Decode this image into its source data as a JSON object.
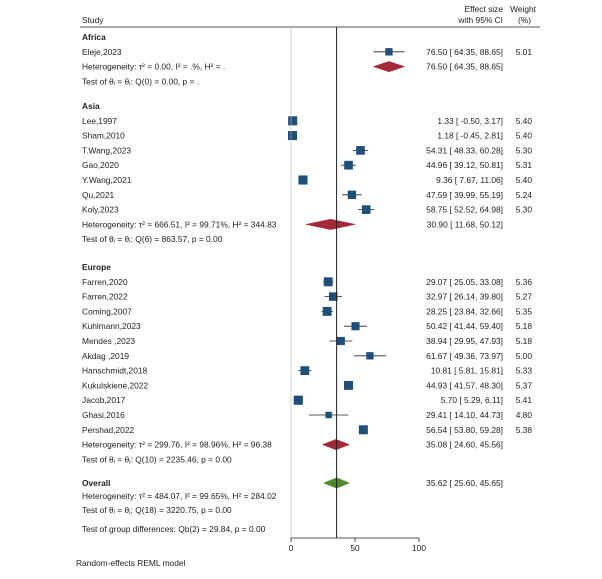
{
  "chart_data": {
    "type": "forest",
    "header": {
      "study": "Study",
      "effect_line1": "Effect size",
      "effect_line2": "with 95% CI",
      "weight_line1": "Weight",
      "weight_line2": "(%)"
    },
    "axis": {
      "xlim": [
        0,
        100
      ],
      "ticks": [
        0,
        50,
        100
      ],
      "tick_labels": [
        "0",
        "50",
        "100"
      ],
      "reference_line": 35.62
    },
    "groups": [
      {
        "name": "Africa",
        "studies": [
          {
            "study": "Eleje,2023",
            "effect": 76.5,
            "lo": 64.35,
            "hi": 88.65,
            "ci_text": "76.50 [ 64.35,  88.65]",
            "weight": "5.01"
          }
        ],
        "pooled": {
          "effect": 76.5,
          "lo": 64.35,
          "hi": 88.65,
          "ci_text": "76.50 [ 64.35,  88.65]"
        },
        "heterogeneity": "Heterogeneity: τ² = 0.00, I² = .%, H² = .",
        "test": "Test of θᵢ = θⱼ: Q(0) = 0.00, p = ."
      },
      {
        "name": "Asia",
        "studies": [
          {
            "study": "Lee,1997",
            "effect": 1.33,
            "lo": -0.5,
            "hi": 3.17,
            "ci_text": "1.33 [ -0.50,   3.17]",
            "weight": "5.40"
          },
          {
            "study": "Sham,2010",
            "effect": 1.18,
            "lo": -0.45,
            "hi": 2.81,
            "ci_text": "1.18 [ -0.45,   2.81]",
            "weight": "5.40"
          },
          {
            "study": "T.Wang,2023",
            "effect": 54.31,
            "lo": 48.33,
            "hi": 60.28,
            "ci_text": "54.31 [ 48.33,  60.28]",
            "weight": "5.30"
          },
          {
            "study": "Gao,2020",
            "effect": 44.96,
            "lo": 39.12,
            "hi": 50.81,
            "ci_text": "44.96 [ 39.12,  50.81]",
            "weight": "5.31"
          },
          {
            "study": "Y.Wang,2021",
            "effect": 9.36,
            "lo": 7.67,
            "hi": 11.06,
            "ci_text": "9.36 [  7.67,  11.06]",
            "weight": "5.40"
          },
          {
            "study": "Qu,2021",
            "effect": 47.59,
            "lo": 39.99,
            "hi": 55.19,
            "ci_text": "47.59 [ 39.99,  55.19]",
            "weight": "5.24"
          },
          {
            "study": "Koly,2023",
            "effect": 58.75,
            "lo": 52.52,
            "hi": 64.98,
            "ci_text": "58.75 [ 52.52,  64.98]",
            "weight": "5.30"
          }
        ],
        "pooled": {
          "effect": 30.9,
          "lo": 11.68,
          "hi": 50.12,
          "ci_text": "30.90 [ 11.68,  50.12]"
        },
        "heterogeneity": "Heterogeneity: τ² = 666.51, I² = 99.71%, H² = 344.83",
        "test": "Test of θᵢ = θⱼ: Q(6) = 863.57, p = 0.00"
      },
      {
        "name": "Europe",
        "studies": [
          {
            "study": "Farren,2020",
            "effect": 29.07,
            "lo": 25.05,
            "hi": 33.08,
            "ci_text": "29.07 [ 25.05,  33.08]",
            "weight": "5.36"
          },
          {
            "study": "Farren,2022",
            "effect": 32.97,
            "lo": 26.14,
            "hi": 39.8,
            "ci_text": "32.97 [ 26.14,  39.80]",
            "weight": "5.27"
          },
          {
            "study": "Coming,2007",
            "effect": 28.25,
            "lo": 23.84,
            "hi": 32.66,
            "ci_text": "28.25 [ 23.84,  32.66]",
            "weight": "5.35"
          },
          {
            "study": "Kuhlmann,2023",
            "effect": 50.42,
            "lo": 41.44,
            "hi": 59.4,
            "ci_text": "50.42 [ 41.44,  59.40]",
            "weight": "5.18"
          },
          {
            "study": "Mendes ,2023",
            "effect": 38.94,
            "lo": 29.95,
            "hi": 47.93,
            "ci_text": "38.94 [ 29.95,  47.93]",
            "weight": "5.18"
          },
          {
            "study": "Akdag ,2019",
            "effect": 61.67,
            "lo": 49.36,
            "hi": 73.97,
            "ci_text": "61.67 [ 49.36,  73.97]",
            "weight": "5.00"
          },
          {
            "study": "Hanschmidt,2018",
            "effect": 10.81,
            "lo": 5.81,
            "hi": 15.81,
            "ci_text": "10.81 [  5.81,  15.81]",
            "weight": "5.33"
          },
          {
            "study": "Kukulskienė,2022",
            "effect": 44.93,
            "lo": 41.57,
            "hi": 48.3,
            "ci_text": "44.93 [ 41.57,  48.30]",
            "weight": "5.37"
          },
          {
            "study": "Jacob,2017",
            "effect": 5.7,
            "lo": 5.29,
            "hi": 6.11,
            "ci_text": "5.70 [  5.29,   6.11]",
            "weight": "5.41"
          },
          {
            "study": "Ghasi,2016",
            "effect": 29.41,
            "lo": 14.1,
            "hi": 44.73,
            "ci_text": "29.41 [ 14.10,  44.73]",
            "weight": "4.80"
          },
          {
            "study": "Pershad,2022",
            "effect": 56.54,
            "lo": 53.8,
            "hi": 59.28,
            "ci_text": "56.54 [ 53.80,  59.28]",
            "weight": "5.38"
          }
        ],
        "pooled": {
          "effect": 35.08,
          "lo": 24.6,
          "hi": 45.56,
          "ci_text": "35.08 [ 24.60,  45.56]"
        },
        "heterogeneity": "Heterogeneity: τ² = 299.76, I² = 98.96%, H² = 96.38",
        "test": "Test of θᵢ = θⱼ: Q(10) = 2235.46, p = 0.00"
      }
    ],
    "overall": {
      "label": "Overall",
      "effect": 35.62,
      "lo": 25.6,
      "hi": 45.65,
      "ci_text": "35.62 [ 25.60,  45.65]",
      "heterogeneity": "Heterogeneity: τ² = 484.07, I² = 99.65%, H² = 284.02",
      "test": "Test of θᵢ = θⱼ: Q(18) = 3220.75, p = 0.00"
    },
    "group_difference": "Test of group differences: Qb(2) = 29.84, p = 0.00",
    "footnote": "Random-effects REML model",
    "colors": {
      "study_marker": "#1f4e79",
      "subgroup_diamond": "#a3283a",
      "overall_diamond": "#4e8a2c",
      "lines": "#222222"
    }
  }
}
